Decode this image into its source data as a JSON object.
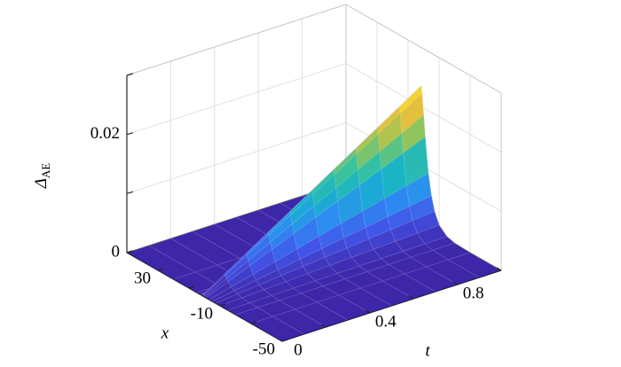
{
  "chart_data": {
    "type": "surface",
    "zlabel": "Δ",
    "zlabel_sub": "AE",
    "xlabel": "x",
    "tlabel": "t",
    "t": [
      0,
      0.1,
      0.2,
      0.3,
      0.4,
      0.5,
      0.6,
      0.7,
      0.8,
      0.9,
      1
    ],
    "x": [
      -50,
      -30,
      -20,
      -15,
      -10,
      -7,
      -5,
      -3,
      -1,
      0,
      1,
      1.5,
      2,
      3,
      5,
      20,
      50
    ],
    "z": [
      [
        0,
        0,
        0,
        0,
        0,
        0,
        0,
        0,
        0,
        0,
        0,
        0,
        0,
        0,
        0,
        0,
        0
      ],
      [
        0,
        0,
        1e-05,
        5e-05,
        0.00016,
        0.00035,
        0.00059,
        0.00094,
        0.00153,
        0.00188,
        0.00223,
        0.00235,
        0.00118,
        0.00024,
        0,
        0,
        0
      ],
      [
        0,
        0,
        2e-05,
        9e-05,
        0.00033,
        0.00071,
        0.00118,
        0.00188,
        0.00306,
        0.00376,
        0.00447,
        0.0047,
        0.00235,
        0.00047,
        0,
        0,
        0
      ],
      [
        0,
        0,
        4e-05,
        0.00014,
        0.00049,
        0.00106,
        0.00176,
        0.00282,
        0.00458,
        0.00564,
        0.0067,
        0.00705,
        0.00353,
        0.00071,
        0,
        0,
        0
      ],
      [
        0,
        0,
        5e-05,
        0.00019,
        0.00066,
        0.00141,
        0.00235,
        0.00376,
        0.00611,
        0.00752,
        0.00893,
        0.0094,
        0.0047,
        0.00094,
        0,
        0,
        0
      ],
      [
        0,
        0,
        6e-05,
        0.00024,
        0.00082,
        0.00176,
        0.00294,
        0.0047,
        0.00764,
        0.0094,
        0.01116,
        0.01175,
        0.00588,
        0.00118,
        0,
        0,
        0
      ],
      [
        0,
        0,
        7e-05,
        0.00028,
        0.00099,
        0.00212,
        0.00353,
        0.00564,
        0.00917,
        0.01128,
        0.0134,
        0.0141,
        0.00705,
        0.00141,
        0,
        0,
        0
      ],
      [
        0,
        0,
        8e-05,
        0.00033,
        0.00115,
        0.00247,
        0.00411,
        0.00658,
        0.01069,
        0.01316,
        0.01563,
        0.01645,
        0.00823,
        0.00165,
        0,
        0,
        0
      ],
      [
        0,
        0,
        9e-05,
        0.00038,
        0.00132,
        0.00282,
        0.0047,
        0.00752,
        0.01222,
        0.01504,
        0.01786,
        0.0188,
        0.0094,
        0.00188,
        0,
        0,
        0
      ],
      [
        0,
        0,
        0.00011,
        0.00042,
        0.00148,
        0.00317,
        0.00529,
        0.00846,
        0.01375,
        0.01692,
        0.02009,
        0.02115,
        0.01058,
        0.00212,
        0,
        0,
        0
      ],
      [
        0,
        0,
        0.00012,
        0.00047,
        0.00165,
        0.00353,
        0.00588,
        0.0094,
        0.01528,
        0.0188,
        0.02233,
        0.0235,
        0.01175,
        0.00235,
        0,
        0,
        0
      ]
    ],
    "tlim": [
      0,
      1
    ],
    "xlim": [
      -50,
      50
    ],
    "zlim": [
      0,
      0.03
    ],
    "tticks": [
      0,
      0.4,
      0.8
    ],
    "xticks": [
      -50,
      -10,
      30
    ],
    "zticks": [
      0,
      0.02
    ],
    "tgrid": [
      0.2,
      0.6,
      1
    ],
    "xgrid": [
      -30,
      10,
      50
    ],
    "zgrid": [
      0.01,
      0.03
    ],
    "colormap": [
      "#3e26a8",
      "#4254e8",
      "#2d8cf2",
      "#17b2cb",
      "#3bc39a",
      "#a2c452",
      "#f1c03a",
      "#f9e723"
    ],
    "grid": true
  }
}
